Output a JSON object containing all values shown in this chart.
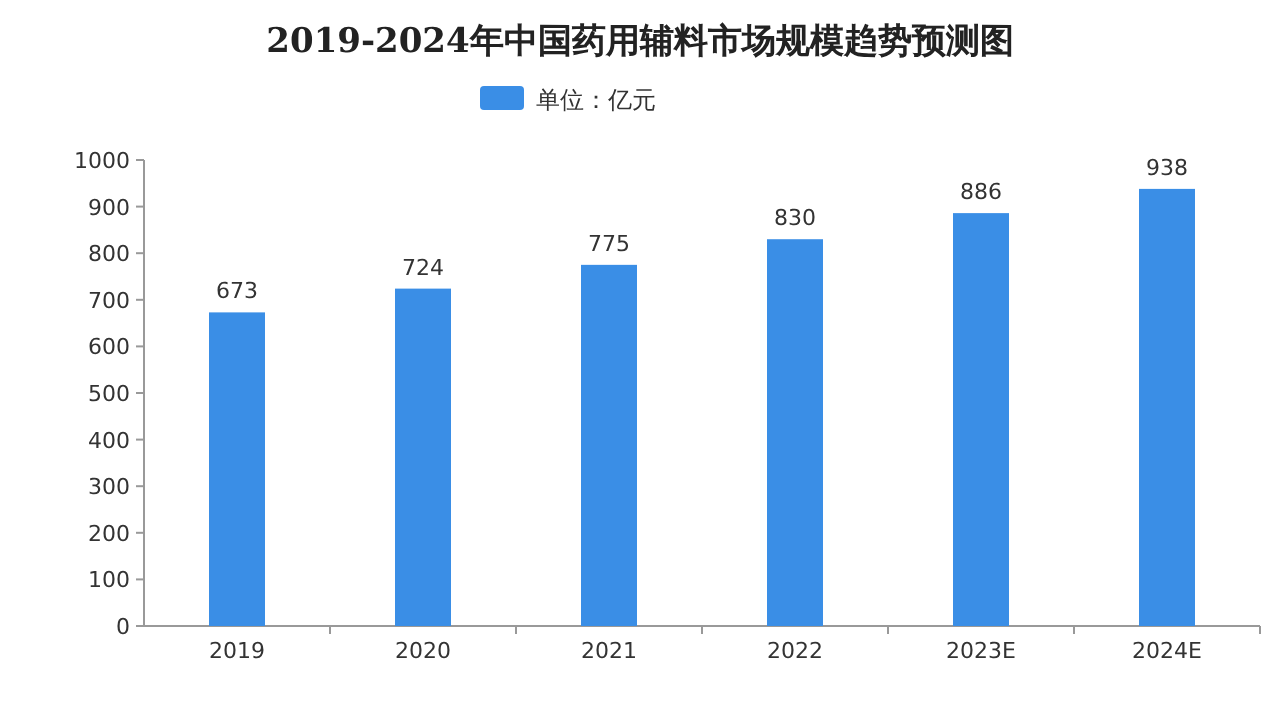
{
  "chart_data": {
    "type": "bar",
    "title": "2019-2024年中国药用辅料市场规模趋势预测图",
    "categories": [
      "2019",
      "2020",
      "2021",
      "2022",
      "2023E",
      "2024E"
    ],
    "series": [
      {
        "name": "单位：亿元",
        "color": "#3a8ee6",
        "values": [
          673,
          724,
          775,
          830,
          886,
          938
        ]
      }
    ],
    "ylim": [
      0,
      1000
    ],
    "yticks": [
      0,
      100,
      200,
      300,
      400,
      500,
      600,
      700,
      800,
      900,
      1000
    ],
    "data_labels": true,
    "legend": "top",
    "grid": false
  }
}
